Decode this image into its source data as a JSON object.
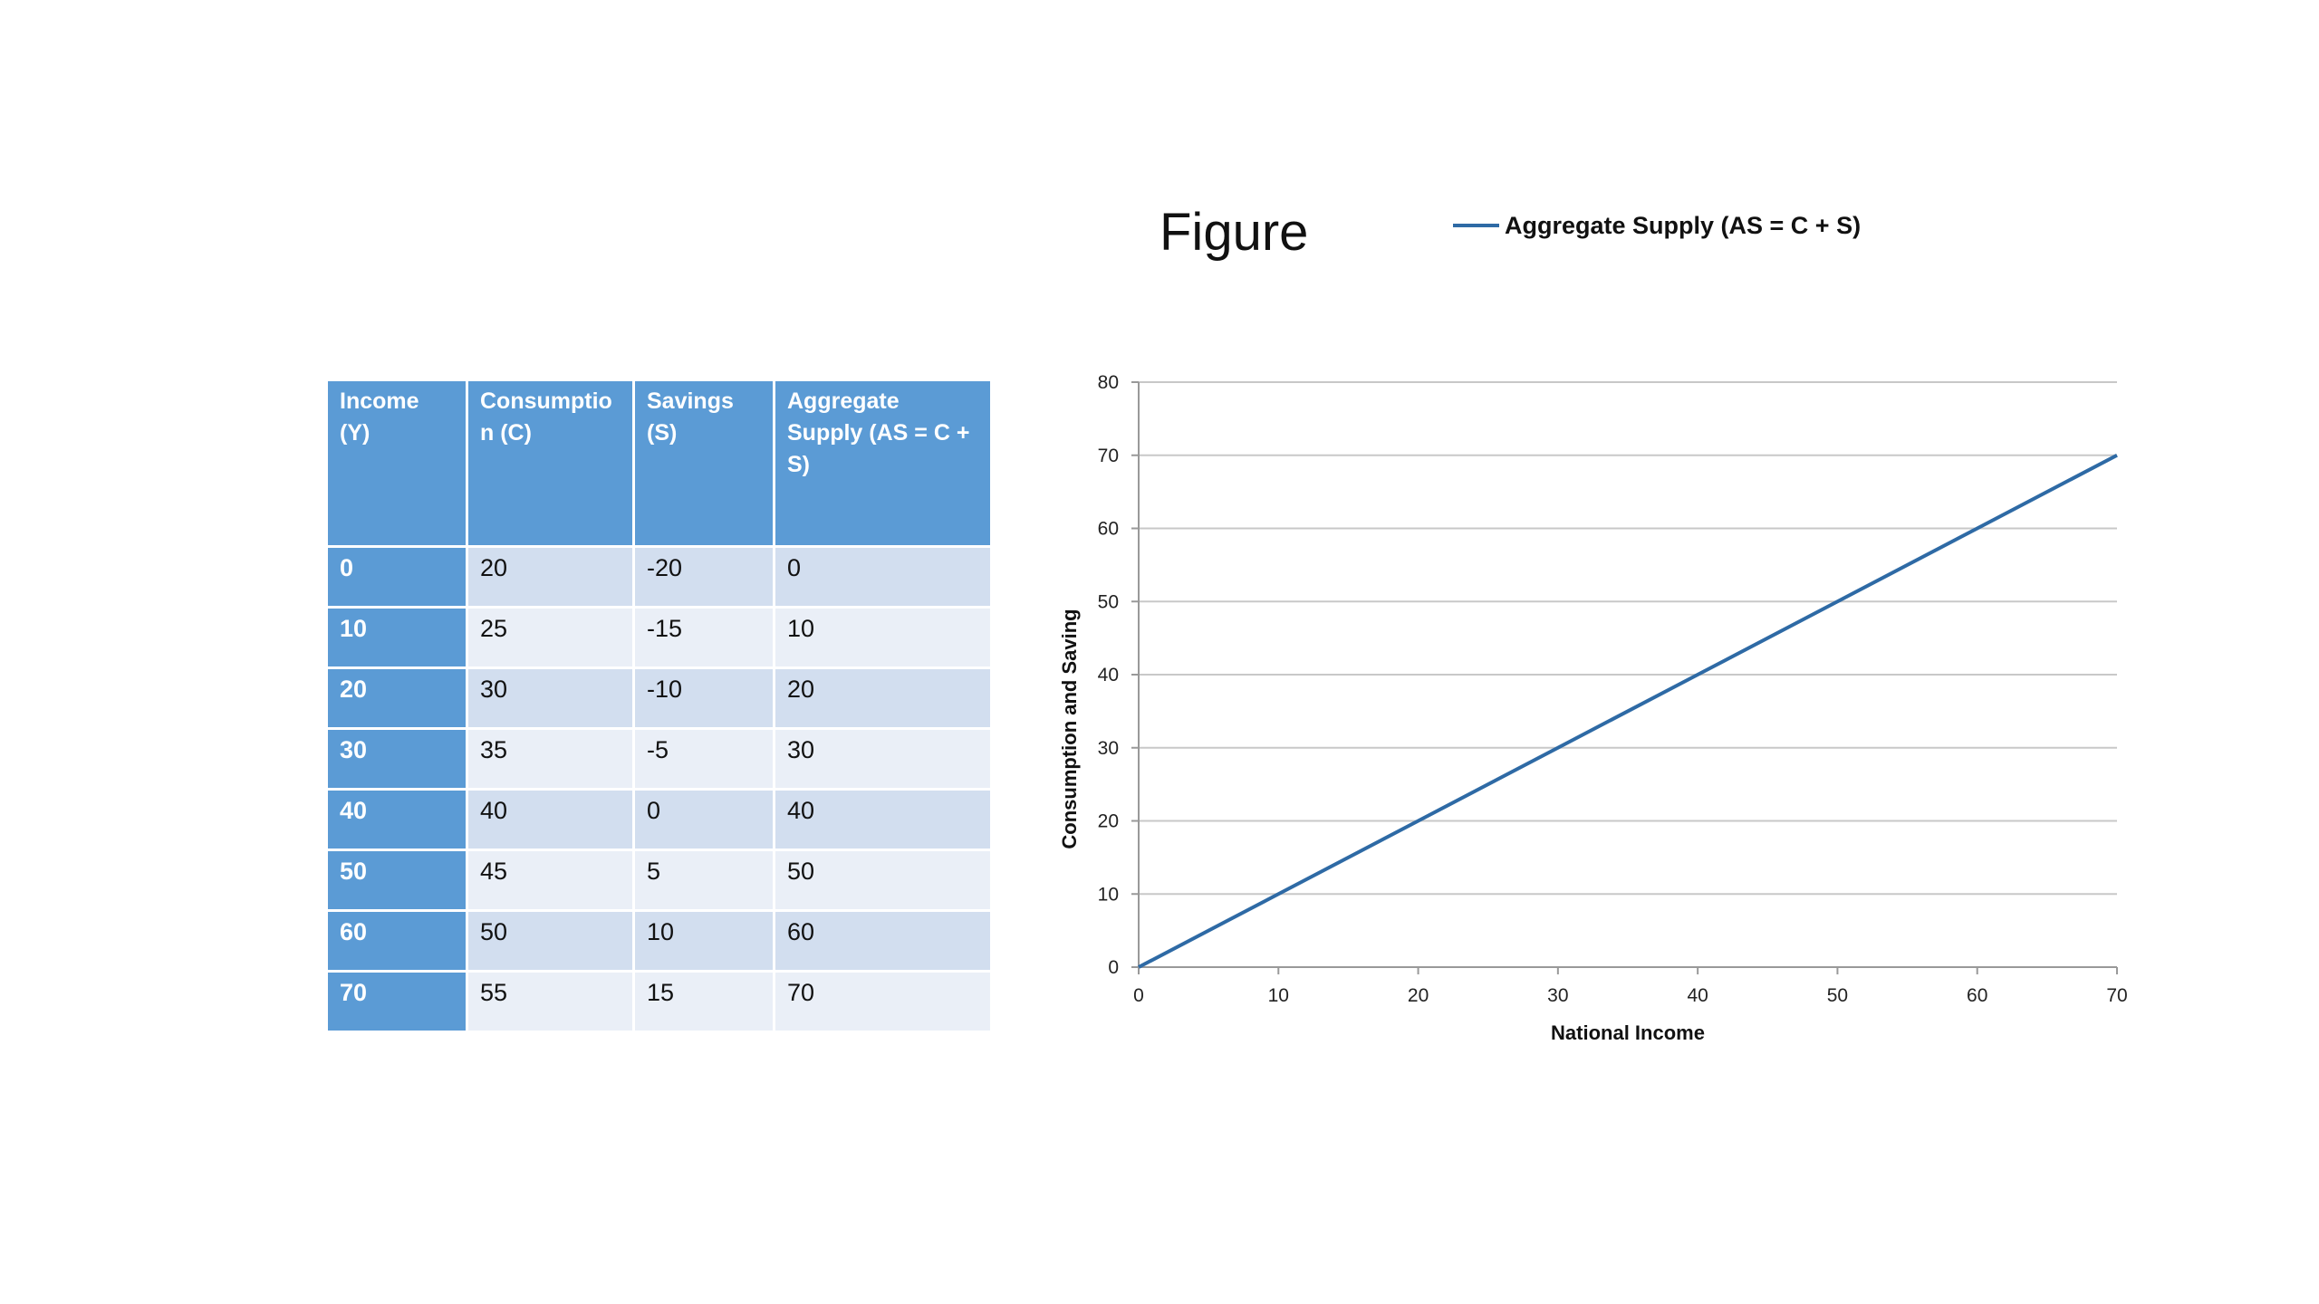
{
  "slide": {
    "title": "Figure"
  },
  "table": {
    "headers": [
      "Income (Y)",
      "Consumptio n (C)",
      "Savings (S)",
      "Aggregate Supply (AS = C + S)"
    ],
    "rows": [
      [
        "0",
        "20",
        "-20",
        "0"
      ],
      [
        "10",
        "25",
        "-15",
        "10"
      ],
      [
        "20",
        "30",
        "-10",
        "20"
      ],
      [
        "30",
        "35",
        "-5",
        "30"
      ],
      [
        "40",
        "40",
        "0",
        "40"
      ],
      [
        "50",
        "45",
        "5",
        "50"
      ],
      [
        "60",
        "50",
        "10",
        "60"
      ],
      [
        "70",
        "55",
        "15",
        "70"
      ]
    ]
  },
  "colors": {
    "header_fill": "#5b9bd5",
    "row_dark": "#d2deef",
    "row_light": "#eaeff7",
    "line": "#2e6aa5",
    "grid": "#c8c8c8"
  },
  "chart_data": {
    "type": "line",
    "xlabel": "National Income",
    "ylabel": "Consumption and Saving",
    "xlim": [
      0,
      70
    ],
    "ylim": [
      0,
      80
    ],
    "xticks": [
      0,
      10,
      20,
      30,
      40,
      50,
      60,
      70
    ],
    "yticks": [
      0,
      10,
      20,
      30,
      40,
      50,
      60,
      70,
      80
    ],
    "grid": "horizontal",
    "legend_position": "top",
    "series": [
      {
        "name": "Aggregate Supply (AS = C + S)",
        "x": [
          0,
          10,
          20,
          30,
          40,
          50,
          60,
          70
        ],
        "y": [
          0,
          10,
          20,
          30,
          40,
          50,
          60,
          70
        ]
      }
    ]
  }
}
